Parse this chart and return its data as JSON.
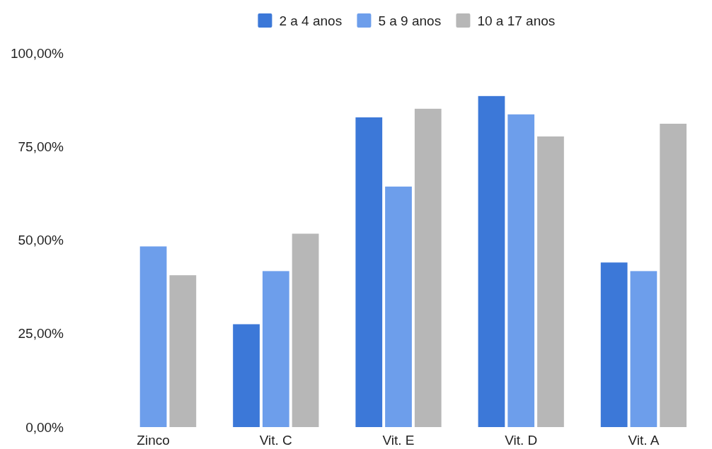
{
  "chart_data": {
    "type": "bar",
    "categories": [
      "Zinco",
      "Vit. C",
      "Vit. E",
      "Vit. D",
      "Vit. A"
    ],
    "series": [
      {
        "name": "2 a 4 anos",
        "color": "#3c78d8",
        "values": [
          null,
          27.5,
          82.8,
          88.5,
          44
        ]
      },
      {
        "name": "5 a 9 anos",
        "color": "#6d9eeb",
        "values": [
          48.3,
          41.7,
          64.3,
          83.6,
          41.7
        ]
      },
      {
        "name": "10 a 17 anos",
        "color": "#b7b7b7",
        "values": [
          40.6,
          51.7,
          85.1,
          77.7,
          81.1
        ]
      }
    ],
    "ylim": [
      0,
      100
    ],
    "yticks": [
      {
        "value": 0,
        "label": "0,00%"
      },
      {
        "value": 25,
        "label": "25,00%"
      },
      {
        "value": 50,
        "label": "50,00%"
      },
      {
        "value": 75,
        "label": "75,00%"
      },
      {
        "value": 100,
        "label": "100,00%"
      }
    ],
    "legend": "top",
    "grid": false
  }
}
